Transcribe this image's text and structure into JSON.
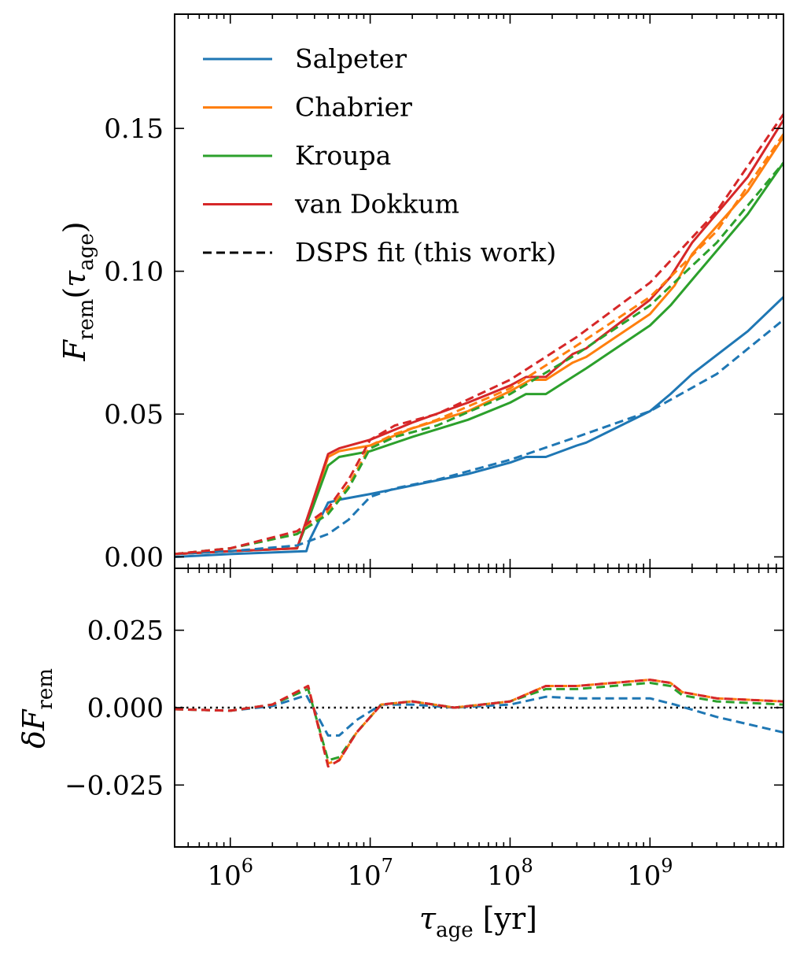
{
  "chart_data": [
    {
      "type": "line",
      "panel": "top",
      "ylabel": "F_rem(τ_age)",
      "ylabel_parts": {
        "main": "F",
        "sub": "rem",
        "open": "(",
        "tau": "τ",
        "tau_sub": "age",
        "close": ")"
      },
      "x_scale": "log",
      "xlim": [
        400000,
        9000000000
      ],
      "ylim": [
        -0.004,
        0.19
      ],
      "yticks": [
        0.0,
        0.05,
        0.1,
        0.15
      ],
      "ytick_labels": [
        "0.00",
        "0.05",
        "0.10",
        "0.15"
      ],
      "legend": {
        "placement": "top-left",
        "entries": [
          {
            "label": "Salpeter",
            "color": "#1f77b4",
            "dash": "solid"
          },
          {
            "label": "Chabrier",
            "color": "#ff7f0e",
            "dash": "solid"
          },
          {
            "label": "Kroupa",
            "color": "#2ca02c",
            "dash": "solid"
          },
          {
            "label": "van Dokkum",
            "color": "#d62728",
            "dash": "solid"
          },
          {
            "label": "DSPS fit (this work)",
            "color": "#000000",
            "dash": "dashed"
          }
        ]
      },
      "series": [
        {
          "name": "Salpeter",
          "color": "#1f77b4",
          "dash": "solid",
          "x": [
            400000,
            1000000,
            3500000,
            3700000,
            5000000,
            6000000,
            10000000,
            20000000,
            50000000,
            100000000,
            130000000,
            180000000,
            300000000,
            350000000,
            1000000000,
            1400000000,
            2000000000,
            5000000000,
            9000000000
          ],
          "y": [
            0.0,
            0.001,
            0.002,
            0.006,
            0.019,
            0.02,
            0.022,
            0.025,
            0.029,
            0.033,
            0.035,
            0.035,
            0.039,
            0.04,
            0.051,
            0.057,
            0.064,
            0.079,
            0.091
          ]
        },
        {
          "name": "Chabrier",
          "color": "#ff7f0e",
          "dash": "solid",
          "x": [
            400000,
            1000000,
            3000000,
            3800000,
            5000000,
            6000000,
            10000000,
            20000000,
            50000000,
            100000000,
            140000000,
            180000000,
            280000000,
            350000000,
            1000000000,
            1500000000,
            2000000000,
            5000000000,
            9000000000
          ],
          "y": [
            0.001,
            0.002,
            0.003,
            0.017,
            0.035,
            0.037,
            0.039,
            0.045,
            0.051,
            0.058,
            0.062,
            0.062,
            0.068,
            0.07,
            0.085,
            0.095,
            0.106,
            0.128,
            0.147
          ]
        },
        {
          "name": "Kroupa",
          "color": "#2ca02c",
          "dash": "solid",
          "x": [
            400000,
            1000000,
            3000000,
            3800000,
            5000000,
            6000000,
            10000000,
            20000000,
            50000000,
            100000000,
            130000000,
            180000000,
            280000000,
            350000000,
            1000000000,
            1400000000,
            2000000000,
            5000000000,
            9000000000
          ],
          "y": [
            0.001,
            0.002,
            0.003,
            0.016,
            0.032,
            0.035,
            0.037,
            0.042,
            0.048,
            0.054,
            0.057,
            0.057,
            0.063,
            0.066,
            0.081,
            0.088,
            0.097,
            0.12,
            0.138
          ]
        },
        {
          "name": "van Dokkum",
          "color": "#d62728",
          "dash": "solid",
          "x": [
            400000,
            1000000,
            3000000,
            3800000,
            5000000,
            6000000,
            10000000,
            20000000,
            50000000,
            100000000,
            130000000,
            180000000,
            280000000,
            350000000,
            1000000000,
            1400000000,
            2000000000,
            5000000000,
            9000000000
          ],
          "y": [
            0.001,
            0.002,
            0.003,
            0.018,
            0.036,
            0.038,
            0.041,
            0.047,
            0.054,
            0.06,
            0.063,
            0.063,
            0.071,
            0.073,
            0.09,
            0.098,
            0.11,
            0.133,
            0.153
          ]
        },
        {
          "name": "Salpeter DSPS fit",
          "color": "#1f77b4",
          "dash": "dashed",
          "x": [
            400000,
            1000000,
            3000000,
            5000000,
            7000000,
            10000000,
            15000000,
            30000000,
            100000000,
            300000000,
            1000000000,
            3000000000,
            9000000000
          ],
          "y": [
            0.001,
            0.002,
            0.004,
            0.008,
            0.013,
            0.021,
            0.024,
            0.027,
            0.034,
            0.042,
            0.051,
            0.064,
            0.083
          ]
        },
        {
          "name": "Chabrier DSPS fit",
          "color": "#ff7f0e",
          "dash": "dashed",
          "x": [
            400000,
            1000000,
            3000000,
            5000000,
            7000000,
            10000000,
            15000000,
            30000000,
            100000000,
            300000000,
            1000000000,
            3000000000,
            9000000000
          ],
          "y": [
            0.001,
            0.003,
            0.008,
            0.016,
            0.025,
            0.039,
            0.043,
            0.048,
            0.059,
            0.074,
            0.091,
            0.114,
            0.148
          ]
        },
        {
          "name": "Kroupa DSPS fit",
          "color": "#2ca02c",
          "dash": "dashed",
          "x": [
            400000,
            1000000,
            3000000,
            5000000,
            7000000,
            10000000,
            15000000,
            30000000,
            100000000,
            300000000,
            1000000000,
            3000000000,
            9000000000
          ],
          "y": [
            0.001,
            0.003,
            0.008,
            0.015,
            0.024,
            0.038,
            0.042,
            0.046,
            0.057,
            0.071,
            0.088,
            0.11,
            0.138
          ]
        },
        {
          "name": "van Dokkum DSPS fit",
          "color": "#d62728",
          "dash": "dashed",
          "x": [
            400000,
            1000000,
            3000000,
            5000000,
            7000000,
            10000000,
            15000000,
            30000000,
            100000000,
            300000000,
            1000000000,
            3000000000,
            9000000000
          ],
          "y": [
            0.001,
            0.003,
            0.009,
            0.017,
            0.027,
            0.041,
            0.046,
            0.05,
            0.062,
            0.077,
            0.096,
            0.121,
            0.155
          ]
        }
      ]
    },
    {
      "type": "line",
      "panel": "bottom",
      "xlabel": "τ_age [yr]",
      "xlabel_parts": {
        "tau": "τ",
        "tau_sub": "age",
        "unit": " [yr]"
      },
      "ylabel": "δF_rem",
      "ylabel_parts": {
        "delta": "δ",
        "main": "F",
        "sub": "rem"
      },
      "x_scale": "log",
      "xlim": [
        400000,
        9000000000
      ],
      "ylim": [
        -0.045,
        0.045
      ],
      "xticks": [
        1000000,
        10000000,
        100000000,
        1000000000
      ],
      "xtick_labels": [
        {
          "base": "10",
          "exp": "6"
        },
        {
          "base": "10",
          "exp": "7"
        },
        {
          "base": "10",
          "exp": "8"
        },
        {
          "base": "10",
          "exp": "9"
        }
      ],
      "yticks": [
        -0.025,
        0.0,
        0.025
      ],
      "ytick_labels": [
        "−0.025",
        "0.000",
        "0.025"
      ],
      "reference_line": {
        "y": 0.0,
        "color": "#000000",
        "dash": "dotted"
      },
      "series": [
        {
          "name": "Salpeter residual",
          "color": "#1f77b4",
          "dash": "dashed",
          "x": [
            400000,
            1000000,
            2000000,
            3500000,
            5000000,
            6000000,
            8000000,
            12000000,
            20000000,
            40000000,
            100000000,
            180000000,
            300000000,
            1000000000,
            1500000000,
            3000000000,
            9000000000
          ],
          "y": [
            -0.0005,
            -0.001,
            0.0005,
            0.004,
            -0.009,
            -0.009,
            -0.004,
            0.001,
            0.001,
            0.0,
            0.001,
            0.0035,
            0.003,
            0.003,
            0.001,
            -0.003,
            -0.008
          ]
        },
        {
          "name": "Chabrier residual",
          "color": "#ff7f0e",
          "dash": "dashed",
          "x": [
            400000,
            1000000,
            2000000,
            3600000,
            5000000,
            6000000,
            8000000,
            12000000,
            20000000,
            40000000,
            100000000,
            180000000,
            300000000,
            1000000000,
            1400000000,
            1700000000,
            3000000000,
            9000000000
          ],
          "y": [
            -0.0005,
            -0.001,
            0.001,
            0.007,
            -0.018,
            -0.017,
            -0.008,
            0.001,
            0.002,
            0.0,
            0.002,
            0.007,
            0.007,
            0.009,
            0.008,
            0.005,
            0.003,
            0.002
          ]
        },
        {
          "name": "Kroupa residual",
          "color": "#2ca02c",
          "dash": "dashed",
          "x": [
            400000,
            1000000,
            2000000,
            3600000,
            5000000,
            6000000,
            8000000,
            12000000,
            20000000,
            40000000,
            100000000,
            180000000,
            300000000,
            1000000000,
            1400000000,
            1700000000,
            3000000000,
            9000000000
          ],
          "y": [
            -0.0005,
            -0.001,
            0.001,
            0.006,
            -0.017,
            -0.016,
            -0.008,
            0.001,
            0.002,
            0.0,
            0.002,
            0.006,
            0.006,
            0.008,
            0.007,
            0.004,
            0.002,
            0.001
          ]
        },
        {
          "name": "van Dokkum residual",
          "color": "#d62728",
          "dash": "dashed",
          "x": [
            400000,
            1000000,
            2000000,
            3600000,
            5000000,
            6000000,
            8000000,
            12000000,
            20000000,
            40000000,
            100000000,
            180000000,
            300000000,
            1000000000,
            1400000000,
            1700000000,
            3000000000,
            9000000000
          ],
          "y": [
            -0.0005,
            -0.001,
            0.001,
            0.007,
            -0.019,
            -0.017,
            -0.008,
            0.001,
            0.002,
            0.0,
            0.002,
            0.007,
            0.007,
            0.009,
            0.008,
            0.005,
            0.003,
            0.002
          ]
        }
      ]
    }
  ]
}
